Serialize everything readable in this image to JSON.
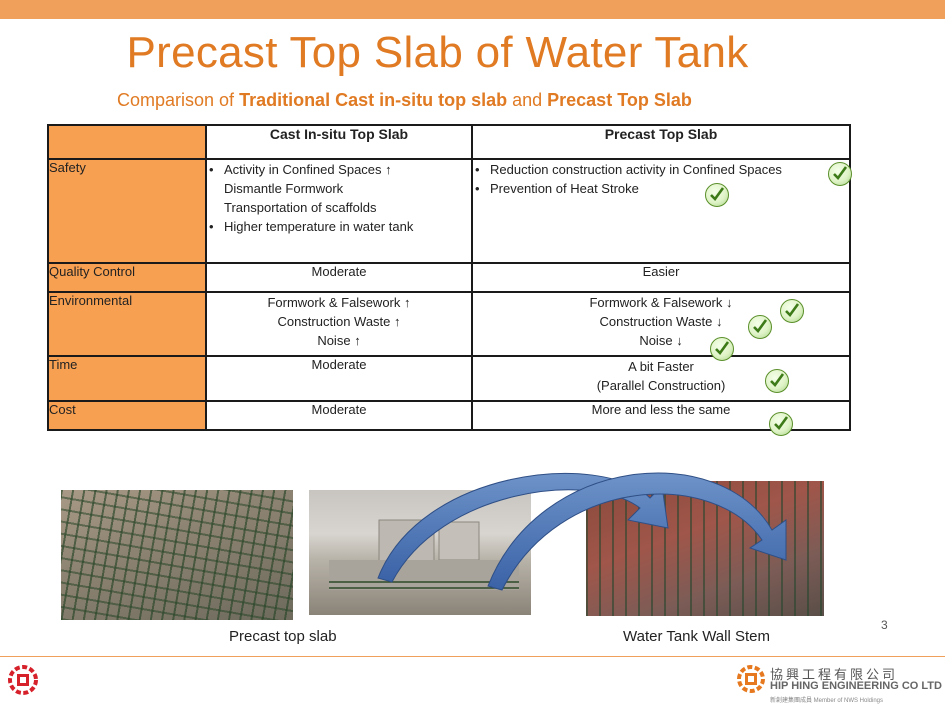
{
  "title": "Precast Top Slab of Water Tank",
  "subtitle": {
    "prefix": "Comparison of ",
    "part1": "Traditional Cast in-situ top slab",
    "mid": " and ",
    "part2": "Precast Top Slab"
  },
  "table": {
    "columns": [
      "Cast In-situ Top Slab",
      "Precast Top Slab"
    ],
    "rows": {
      "safety": {
        "label": "Safety",
        "insitu": [
          "Activity in Confined Spaces",
          "Dismantle Formwork",
          "Transportation of scaffolds",
          "Higher temperature in water tank"
        ],
        "insitu_arrow": "↑",
        "precast": [
          "Reduction construction activity in Confined Spaces",
          "Prevention of Heat Stroke"
        ]
      },
      "quality": {
        "label": "Quality Control",
        "insitu": "Moderate",
        "precast": "Easier"
      },
      "environmental": {
        "label": "Environmental",
        "insitu": [
          "Formwork & Falsework",
          "Construction Waste",
          "Noise"
        ],
        "insitu_arrow": "↑",
        "precast": [
          "Formwork & Falsework",
          "Construction Waste",
          "Noise"
        ],
        "precast_arrow": "↓"
      },
      "time": {
        "label": "Time",
        "insitu": "Moderate",
        "precast": [
          "A bit Faster",
          "(Parallel Construction)"
        ]
      },
      "cost": {
        "label": "Cost",
        "insitu": "Moderate",
        "precast": "More and less the same"
      }
    }
  },
  "captions": {
    "left": "Precast top slab",
    "right": "Water Tank Wall Stem"
  },
  "page_number": "3",
  "company": {
    "name_cn": "協興工程有限公司",
    "name_en": "HIP HING ENGINEERING CO LTD",
    "sub": "新創建集團成員 Member of NWS Holdings"
  },
  "colors": {
    "accent": "#e07a23",
    "header_fill": "#f7a052",
    "check": "#5a8f2a"
  },
  "icons": [
    "check-icon",
    "up-arrow-icon",
    "down-arrow-icon",
    "curved-arrow-icon",
    "company-logo-icon"
  ]
}
